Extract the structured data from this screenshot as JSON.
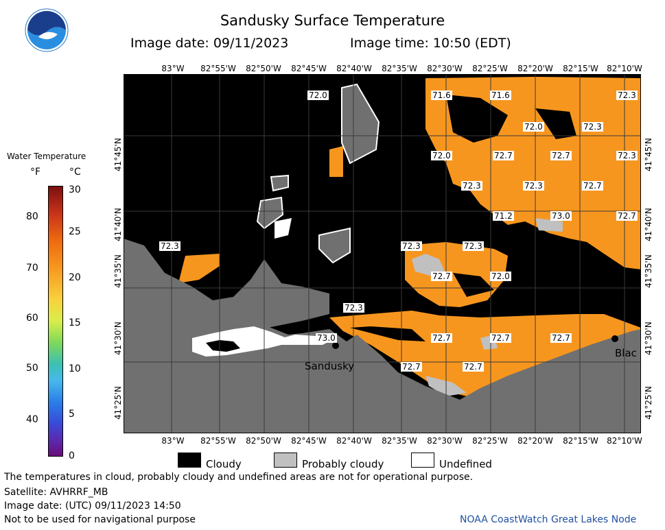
{
  "header": {
    "title": "Sandusky Surface Temperature",
    "image_date_label": "Image date: 09/11/2023",
    "image_time_label": "Image time: 10:50 (EDT)"
  },
  "legend": {
    "title": "Water Temperature",
    "unit_f": "°F",
    "unit_c": "°C",
    "f_ticks": [
      "80",
      "70",
      "60",
      "50",
      "40"
    ],
    "c_ticks": [
      "30",
      "25",
      "20",
      "15",
      "10",
      "5",
      "0"
    ]
  },
  "map": {
    "lon_labels": [
      "83°W",
      "82°55'W",
      "82°50'W",
      "82°45'W",
      "82°40'W",
      "82°35'W",
      "82°30'W",
      "82°25'W",
      "82°20'W",
      "82°15'W",
      "82°10'W"
    ],
    "lat_labels": [
      "41°45'N",
      "41°40'N",
      "41°35'N",
      "41°30'N",
      "41°25'N"
    ],
    "temperatures": [
      "72.0",
      "71.6",
      "71.6",
      "72.3",
      "72.0",
      "72.3",
      "72.0",
      "72.7",
      "72.7",
      "72.3",
      "72.3",
      "72.3",
      "72.7",
      "71.2",
      "73.0",
      "72.7",
      "72.3",
      "72.3",
      "72.3",
      "72.7",
      "72.0",
      "72.3",
      "73.0",
      "72.7",
      "72.7",
      "72.7",
      "72.7",
      "72.7"
    ],
    "places": [
      "Sandusky",
      "Blac"
    ]
  },
  "key": {
    "cloudy": "Cloudy",
    "probably_cloudy": "Probably cloudy",
    "undefined": "Undefined"
  },
  "footer": {
    "disclaimer": "The temperatures in cloud, probably cloudy and undefined areas are not for operational purpose.",
    "satellite": "Satellite: AVHRRF_MB",
    "utc_date": "Image date: (UTC) 09/11/2023  14:50",
    "navigation": "Not to be used for navigational purpose",
    "node": "NOAA CoastWatch Great Lakes Node"
  },
  "colors": {
    "cloudy": "#000000",
    "probably_cloudy": "#c0c0c0",
    "land": "#707070",
    "water_warm": "#f7961e",
    "noaa_blue": "#1b74c5"
  }
}
